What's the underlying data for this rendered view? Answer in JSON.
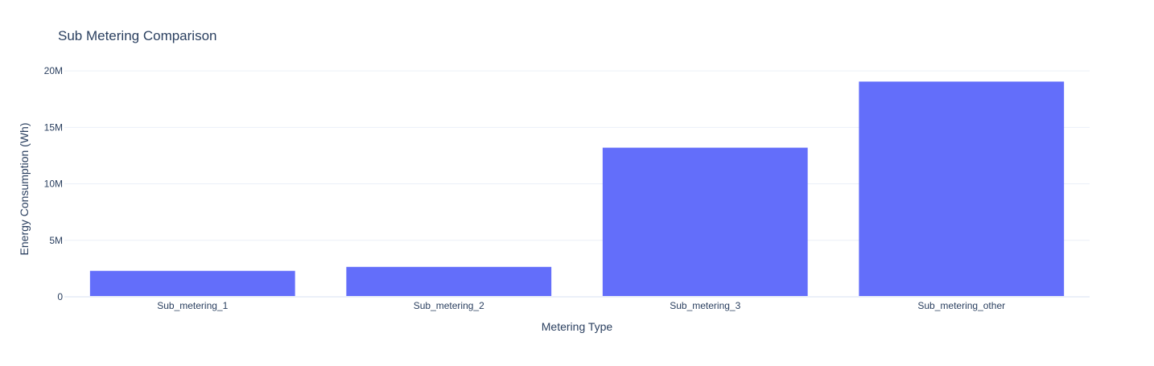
{
  "chart_data": {
    "type": "bar",
    "title": "Sub Metering Comparison",
    "xlabel": "Metering Type",
    "ylabel": "Energy Consumption (Wh)",
    "categories": [
      "Sub_metering_1",
      "Sub_metering_2",
      "Sub_metering_3",
      "Sub_metering_other"
    ],
    "values": [
      2300000,
      2650000,
      13200000,
      19050000
    ],
    "ylim": [
      0,
      22000000
    ],
    "yticks": [
      0,
      5000000,
      10000000,
      15000000,
      20000000
    ],
    "ytick_labels": [
      "0",
      "5M",
      "10M",
      "15M",
      "20M"
    ],
    "grid": true,
    "legend": "none",
    "colors": {
      "bar": "#636efa",
      "grid": "#ebf0f8",
      "text": "#2a3f5f",
      "background": "#ffffff"
    }
  }
}
